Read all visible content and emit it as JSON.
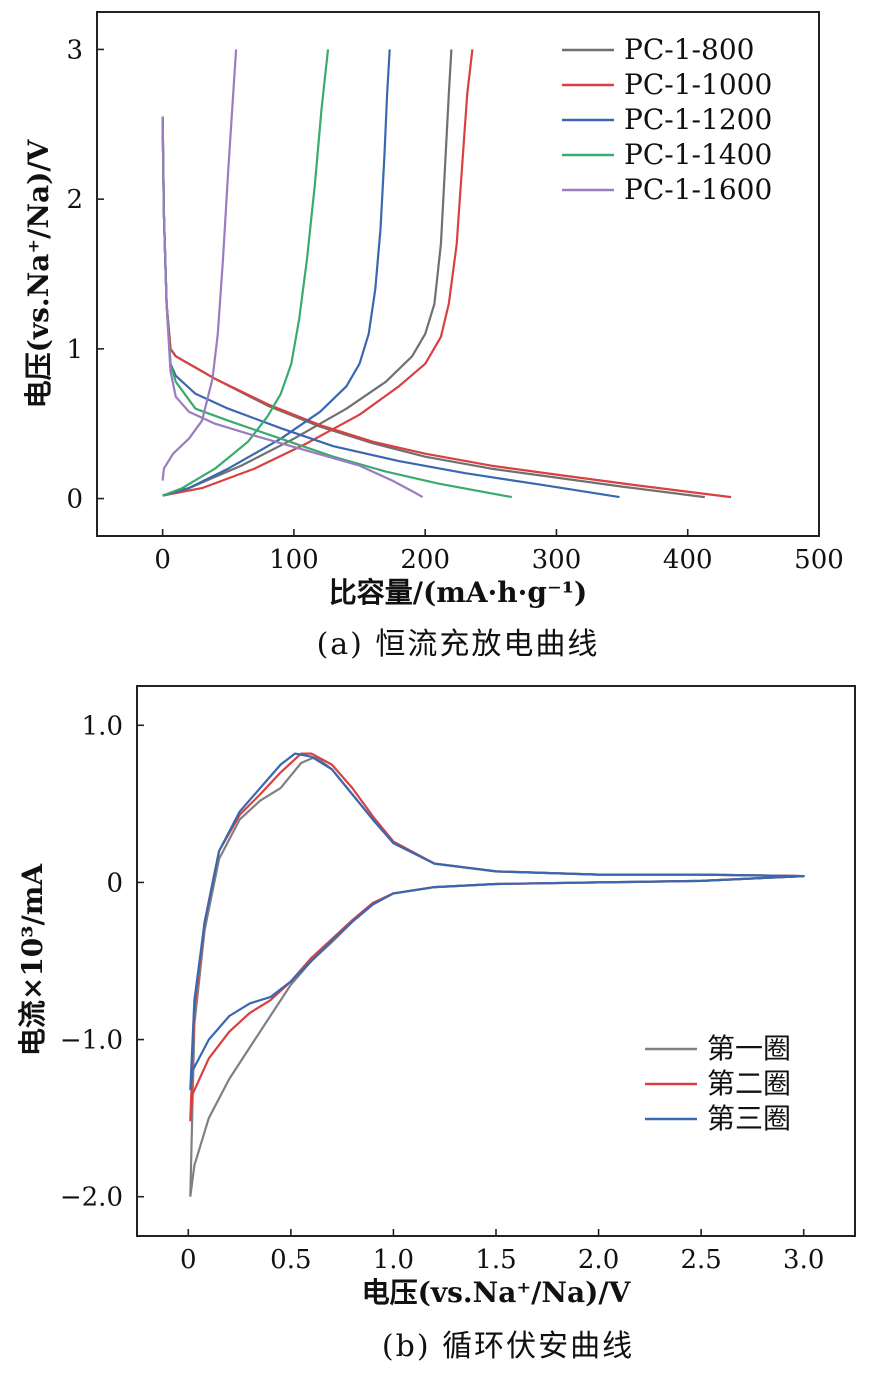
{
  "figures": {
    "a": {
      "caption": "(a) 恒流充放电曲线",
      "chart_data": {
        "type": "line",
        "xlabel": "比容量/(mA·h·g⁻¹)",
        "ylabel": "电压(vs.Na⁺/Na)/V",
        "xlim": [
          -50,
          500
        ],
        "ylim": [
          -0.25,
          3.25
        ],
        "xticks": [
          "0",
          "100",
          "200",
          "300",
          "400",
          "500"
        ],
        "yticks": [
          "0",
          "1",
          "2",
          "3"
        ],
        "legend_position": "top-right",
        "series": [
          {
            "name": "PC-1-800",
            "color": "#707070",
            "discharge": [
              [
                0,
                2.55
              ],
              [
                1,
                1.9
              ],
              [
                3,
                1.3
              ],
              [
                6,
                1.0
              ],
              [
                10,
                0.95
              ],
              [
                40,
                0.8
              ],
              [
                80,
                0.62
              ],
              [
                120,
                0.48
              ],
              [
                160,
                0.37
              ],
              [
                200,
                0.28
              ],
              [
                250,
                0.2
              ],
              [
                300,
                0.14
              ],
              [
                350,
                0.08
              ],
              [
                413,
                0.01
              ]
            ],
            "charge": [
              [
                0,
                0.02
              ],
              [
                20,
                0.07
              ],
              [
                60,
                0.22
              ],
              [
                100,
                0.4
              ],
              [
                140,
                0.6
              ],
              [
                170,
                0.78
              ],
              [
                190,
                0.95
              ],
              [
                200,
                1.1
              ],
              [
                207,
                1.3
              ],
              [
                212,
                1.7
              ],
              [
                215,
                2.2
              ],
              [
                218,
                2.7
              ],
              [
                220,
                3.0
              ]
            ]
          },
          {
            "name": "PC-1-1000",
            "color": "#d94040",
            "discharge": [
              [
                0,
                2.55
              ],
              [
                1,
                1.9
              ],
              [
                3,
                1.3
              ],
              [
                6,
                1.0
              ],
              [
                10,
                0.95
              ],
              [
                40,
                0.8
              ],
              [
                80,
                0.63
              ],
              [
                120,
                0.49
              ],
              [
                160,
                0.38
              ],
              [
                200,
                0.3
              ],
              [
                250,
                0.22
              ],
              [
                300,
                0.16
              ],
              [
                360,
                0.09
              ],
              [
                433,
                0.01
              ]
            ],
            "charge": [
              [
                0,
                0.02
              ],
              [
                30,
                0.07
              ],
              [
                70,
                0.2
              ],
              [
                110,
                0.37
              ],
              [
                150,
                0.56
              ],
              [
                180,
                0.75
              ],
              [
                200,
                0.9
              ],
              [
                212,
                1.08
              ],
              [
                218,
                1.3
              ],
              [
                224,
                1.7
              ],
              [
                228,
                2.2
              ],
              [
                232,
                2.7
              ],
              [
                236,
                3.0
              ]
            ]
          },
          {
            "name": "PC-1-1200",
            "color": "#3a68b0",
            "discharge": [
              [
                0,
                2.55
              ],
              [
                1,
                1.9
              ],
              [
                3,
                1.3
              ],
              [
                6,
                0.9
              ],
              [
                10,
                0.82
              ],
              [
                25,
                0.7
              ],
              [
                50,
                0.6
              ],
              [
                90,
                0.47
              ],
              [
                130,
                0.35
              ],
              [
                180,
                0.25
              ],
              [
                230,
                0.17
              ],
              [
                290,
                0.09
              ],
              [
                348,
                0.01
              ]
            ],
            "charge": [
              [
                0,
                0.02
              ],
              [
                20,
                0.07
              ],
              [
                50,
                0.2
              ],
              [
                90,
                0.4
              ],
              [
                120,
                0.58
              ],
              [
                140,
                0.75
              ],
              [
                150,
                0.9
              ],
              [
                157,
                1.1
              ],
              [
                162,
                1.4
              ],
              [
                166,
                1.8
              ],
              [
                169,
                2.3
              ],
              [
                171,
                2.7
              ],
              [
                173,
                3.0
              ]
            ]
          },
          {
            "name": "PC-1-1400",
            "color": "#3aaa6e",
            "discharge": [
              [
                0,
                2.55
              ],
              [
                1,
                1.9
              ],
              [
                3,
                1.3
              ],
              [
                6,
                0.9
              ],
              [
                10,
                0.78
              ],
              [
                25,
                0.6
              ],
              [
                50,
                0.52
              ],
              [
                90,
                0.4
              ],
              [
                130,
                0.28
              ],
              [
                170,
                0.18
              ],
              [
                210,
                0.1
              ],
              [
                266,
                0.01
              ]
            ],
            "charge": [
              [
                0,
                0.02
              ],
              [
                15,
                0.07
              ],
              [
                40,
                0.2
              ],
              [
                65,
                0.38
              ],
              [
                80,
                0.55
              ],
              [
                90,
                0.7
              ],
              [
                98,
                0.9
              ],
              [
                104,
                1.2
              ],
              [
                110,
                1.6
              ],
              [
                116,
                2.1
              ],
              [
                121,
                2.6
              ],
              [
                126,
                3.0
              ]
            ]
          },
          {
            "name": "PC-1-1600",
            "color": "#9a7cc0",
            "discharge": [
              [
                0,
                2.55
              ],
              [
                1,
                1.9
              ],
              [
                3,
                1.3
              ],
              [
                6,
                0.85
              ],
              [
                10,
                0.68
              ],
              [
                20,
                0.58
              ],
              [
                40,
                0.5
              ],
              [
                70,
                0.42
              ],
              [
                110,
                0.32
              ],
              [
                150,
                0.22
              ],
              [
                175,
                0.12
              ],
              [
                190,
                0.05
              ],
              [
                198,
                0.01
              ]
            ],
            "charge": [
              [
                0,
                0.12
              ],
              [
                1,
                0.2
              ],
              [
                8,
                0.3
              ],
              [
                20,
                0.4
              ],
              [
                30,
                0.52
              ],
              [
                38,
                0.8
              ],
              [
                42,
                1.1
              ],
              [
                46,
                1.6
              ],
              [
                50,
                2.2
              ],
              [
                53,
                2.6
              ],
              [
                56,
                3.0
              ]
            ]
          }
        ]
      }
    },
    "b": {
      "caption": "(b) 循环伏安曲线",
      "chart_data": {
        "type": "line",
        "xlabel": "电压(vs.Na⁺/Na)/V",
        "ylabel": "电流×10³/mA",
        "xlim": [
          -0.25,
          3.25
        ],
        "ylim": [
          -2.25,
          1.25
        ],
        "xticks": [
          "0",
          "0.5",
          "1.0",
          "1.5",
          "2.0",
          "2.5",
          "3.0"
        ],
        "yticks": [
          "1.0",
          "0",
          "−1.0",
          "−2.0"
        ],
        "legend_position": "lower-right",
        "series": [
          {
            "name": "第一圈",
            "color": "#808080",
            "curve": [
              [
                0.01,
                -2.0
              ],
              [
                0.03,
                -1.8
              ],
              [
                0.1,
                -1.5
              ],
              [
                0.2,
                -1.25
              ],
              [
                0.3,
                -1.05
              ],
              [
                0.4,
                -0.85
              ],
              [
                0.5,
                -0.65
              ],
              [
                0.6,
                -0.5
              ],
              [
                0.7,
                -0.38
              ],
              [
                0.8,
                -0.25
              ],
              [
                0.9,
                -0.14
              ],
              [
                1.0,
                -0.07
              ],
              [
                1.2,
                -0.03
              ],
              [
                1.5,
                -0.01
              ],
              [
                2.0,
                0.0
              ],
              [
                2.5,
                0.01
              ],
              [
                3.0,
                0.04
              ],
              [
                2.5,
                0.05
              ],
              [
                2.0,
                0.05
              ],
              [
                1.5,
                0.07
              ],
              [
                1.2,
                0.12
              ],
              [
                1.0,
                0.25
              ],
              [
                0.9,
                0.4
              ],
              [
                0.8,
                0.56
              ],
              [
                0.7,
                0.72
              ],
              [
                0.62,
                0.8
              ],
              [
                0.55,
                0.76
              ],
              [
                0.45,
                0.6
              ],
              [
                0.35,
                0.52
              ],
              [
                0.25,
                0.4
              ],
              [
                0.15,
                0.15
              ],
              [
                0.08,
                -0.3
              ],
              [
                0.03,
                -0.9
              ],
              [
                0.01,
                -2.0
              ]
            ]
          },
          {
            "name": "第二圈",
            "color": "#d94040",
            "curve": [
              [
                0.01,
                -1.52
              ],
              [
                0.02,
                -1.35
              ],
              [
                0.1,
                -1.12
              ],
              [
                0.2,
                -0.95
              ],
              [
                0.3,
                -0.83
              ],
              [
                0.4,
                -0.75
              ],
              [
                0.5,
                -0.63
              ],
              [
                0.6,
                -0.48
              ],
              [
                0.7,
                -0.36
              ],
              [
                0.8,
                -0.24
              ],
              [
                0.9,
                -0.13
              ],
              [
                1.0,
                -0.07
              ],
              [
                1.2,
                -0.03
              ],
              [
                1.5,
                -0.01
              ],
              [
                2.0,
                0.0
              ],
              [
                2.5,
                0.01
              ],
              [
                3.0,
                0.04
              ],
              [
                2.5,
                0.05
              ],
              [
                2.0,
                0.05
              ],
              [
                1.5,
                0.07
              ],
              [
                1.2,
                0.12
              ],
              [
                1.0,
                0.26
              ],
              [
                0.9,
                0.42
              ],
              [
                0.8,
                0.6
              ],
              [
                0.7,
                0.75
              ],
              [
                0.6,
                0.82
              ],
              [
                0.55,
                0.82
              ],
              [
                0.45,
                0.7
              ],
              [
                0.35,
                0.56
              ],
              [
                0.25,
                0.43
              ],
              [
                0.15,
                0.2
              ],
              [
                0.08,
                -0.25
              ],
              [
                0.03,
                -0.8
              ],
              [
                0.01,
                -1.52
              ]
            ]
          },
          {
            "name": "第三圈",
            "color": "#3a68b0",
            "curve": [
              [
                0.01,
                -1.32
              ],
              [
                0.02,
                -1.2
              ],
              [
                0.1,
                -1.0
              ],
              [
                0.2,
                -0.85
              ],
              [
                0.3,
                -0.77
              ],
              [
                0.4,
                -0.73
              ],
              [
                0.5,
                -0.63
              ],
              [
                0.6,
                -0.5
              ],
              [
                0.7,
                -0.37
              ],
              [
                0.8,
                -0.25
              ],
              [
                0.9,
                -0.14
              ],
              [
                1.0,
                -0.07
              ],
              [
                1.2,
                -0.03
              ],
              [
                1.5,
                -0.01
              ],
              [
                2.0,
                0.0
              ],
              [
                2.5,
                0.01
              ],
              [
                3.0,
                0.04
              ],
              [
                2.5,
                0.05
              ],
              [
                2.0,
                0.05
              ],
              [
                1.5,
                0.07
              ],
              [
                1.2,
                0.12
              ],
              [
                1.0,
                0.25
              ],
              [
                0.9,
                0.4
              ],
              [
                0.8,
                0.56
              ],
              [
                0.7,
                0.72
              ],
              [
                0.6,
                0.8
              ],
              [
                0.52,
                0.82
              ],
              [
                0.45,
                0.75
              ],
              [
                0.35,
                0.6
              ],
              [
                0.25,
                0.45
              ],
              [
                0.15,
                0.2
              ],
              [
                0.08,
                -0.25
              ],
              [
                0.03,
                -0.75
              ],
              [
                0.01,
                -1.32
              ]
            ]
          }
        ]
      }
    }
  }
}
